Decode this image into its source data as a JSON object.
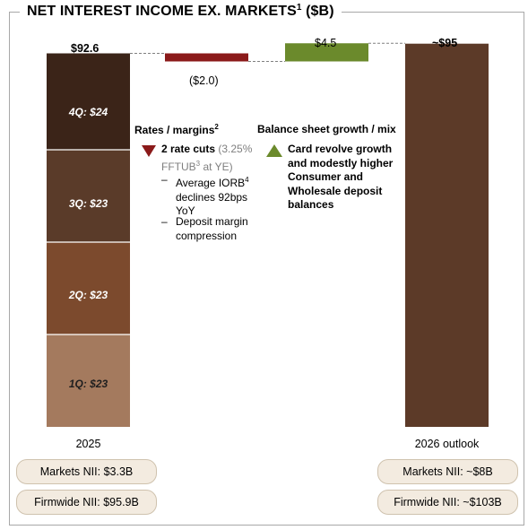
{
  "title": {
    "main": "NET INTEREST INCOME EX. MARKETS",
    "sup": "1",
    "unit": "($B)"
  },
  "chart_data": {
    "type": "waterfall",
    "ylim": [
      0,
      100
    ],
    "bars": [
      {
        "label": "2025",
        "total": 92.6,
        "total_label": "$92.6",
        "segments": [
          {
            "name": "1Q",
            "value": 23,
            "label": "1Q: $23",
            "color": "#a47a5e"
          },
          {
            "name": "2Q",
            "value": 23,
            "label": "2Q: $23",
            "color": "#7c4a2d"
          },
          {
            "name": "3Q",
            "value": 23,
            "label": "3Q: $23",
            "color": "#5a3b29"
          },
          {
            "name": "4Q",
            "value": 24,
            "label": "4Q: $24",
            "color": "#3b2418"
          }
        ]
      },
      {
        "label": "",
        "delta": -2.0,
        "value_label": "($2.0)",
        "color": "#8b1a1a"
      },
      {
        "label": "",
        "delta": 4.5,
        "value_label": "$4.5",
        "color": "#6b8a2c"
      },
      {
        "label": "2026 outlook",
        "total": 95,
        "total_label": "~$95",
        "color": "#5c3a28"
      }
    ]
  },
  "rates": {
    "header": "Rates / margins",
    "header_sup": "2",
    "bullet_bold": "2 rate cuts",
    "bullet_gray_1": "(3.25%",
    "bullet_gray_2": "FFTUB",
    "bullet_gray_sup": "3",
    "bullet_gray_3": "at YE)",
    "sub1_a": "Average IORB",
    "sub1_sup": "4",
    "sub1_b": "declines 92bps",
    "sub1_c": "YoY",
    "sub2_a": "Deposit margin",
    "sub2_b": "compression",
    "dash": "–"
  },
  "balance": {
    "header": "Balance sheet growth / mix",
    "line1": "Card revolve growth",
    "line2": "and modestly higher",
    "line3": "Consumer and",
    "line4": "Wholesale deposit",
    "line5": "balances"
  },
  "pills": {
    "left_markets": "Markets NII: $3.3B",
    "left_firmwide": "Firmwide NII: $95.9B",
    "right_markets": "Markets NII: ~$8B",
    "right_firmwide": "Firmwide NII: ~$103B"
  }
}
